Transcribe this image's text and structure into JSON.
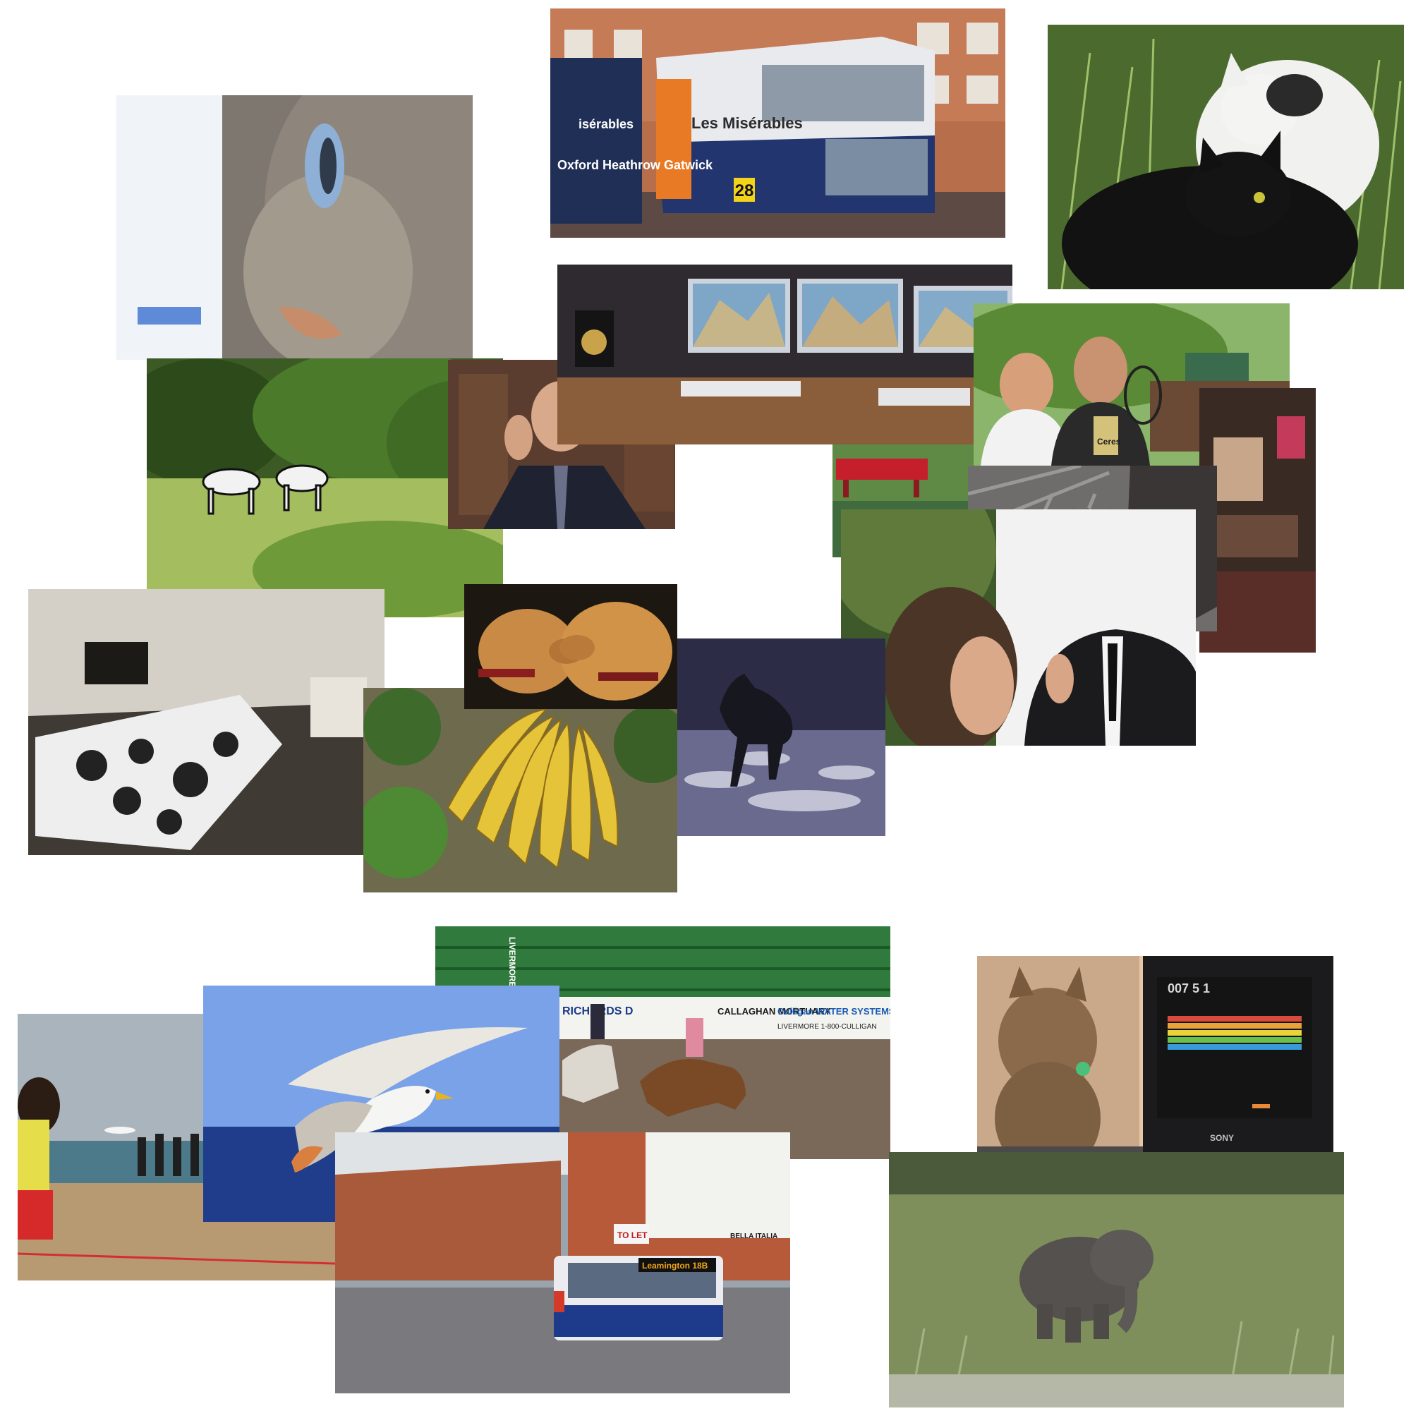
{
  "photos": {
    "bus": {
      "ad_title": "Les Misérables",
      "route": "28",
      "side_text": "Oxford Heathrow Gatwick",
      "ad_left": "isérables"
    },
    "rodeo": {
      "arena_vertical": "LIVERMORE",
      "sign_1": "RICHARDS D",
      "sign_2": "CALLAGHAN MORTUARY",
      "sign_3": "Culligan WATER SYSTEMS",
      "sign_3_sub": "LIVERMORE 1-800-CULLIGAN"
    },
    "street_bus": {
      "dest": "Leamington 18B",
      "to_let": "TO LET",
      "shop": "BELLA ITALIA"
    },
    "tv_cat": {
      "score": "007   5   1",
      "brand": "SONY"
    },
    "tennis": {
      "shirt_text": "Ceres"
    }
  },
  "colors": {
    "sky": "#7aa2e8",
    "sea": "#1f3d8a",
    "grass": "#6f8f3a",
    "banana": "#e6c43a"
  }
}
